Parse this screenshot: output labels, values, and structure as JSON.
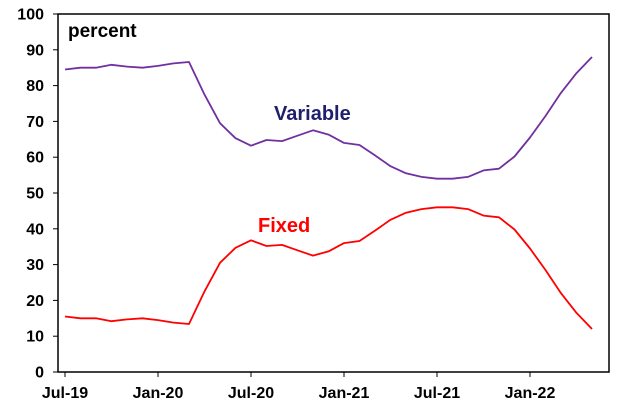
{
  "chart_data": {
    "type": "line",
    "unit_label": "percent",
    "ylim": [
      0,
      100
    ],
    "yticks": [
      0,
      10,
      20,
      30,
      40,
      50,
      60,
      70,
      80,
      90,
      100
    ],
    "x_tick_labels": [
      "Jul-19",
      "Jan-20",
      "Jul-20",
      "Jan-21",
      "Jul-21",
      "Jan-22"
    ],
    "x": [
      "Jul-19",
      "Aug-19",
      "Sep-19",
      "Oct-19",
      "Nov-19",
      "Dec-19",
      "Jan-20",
      "Feb-20",
      "Mar-20",
      "Apr-20",
      "May-20",
      "Jun-20",
      "Jul-20",
      "Aug-20",
      "Sep-20",
      "Oct-20",
      "Nov-20",
      "Dec-20",
      "Jan-21",
      "Feb-21",
      "Mar-21",
      "Apr-21",
      "May-21",
      "Jun-21",
      "Jul-21",
      "Aug-21",
      "Sep-21",
      "Oct-21",
      "Nov-21",
      "Dec-21",
      "Jan-22",
      "Feb-22",
      "Mar-22",
      "Apr-22",
      "May-22"
    ],
    "grid": false,
    "series": [
      {
        "name": "Variable",
        "color": "#7030A0",
        "label_color": "#1F1F6E",
        "values": [
          84.5,
          85,
          85,
          85.8,
          85.3,
          85,
          85.5,
          86.2,
          86.6,
          77.5,
          69.5,
          65.3,
          63.2,
          64.8,
          64.5,
          66,
          67.5,
          66.3,
          64,
          63.4,
          60.5,
          57.5,
          55.5,
          54.5,
          54,
          54,
          54.5,
          56.3,
          56.8,
          60.2,
          65.5,
          71.5,
          78,
          83.5,
          88
        ]
      },
      {
        "name": "Fixed",
        "color": "#FF0000",
        "label_color": "#FF0000",
        "values": [
          15.5,
          15,
          15,
          14.2,
          14.7,
          15,
          14.5,
          13.8,
          13.4,
          22.5,
          30.5,
          34.7,
          36.8,
          35.2,
          35.5,
          34,
          32.5,
          33.7,
          36,
          36.6,
          39.5,
          42.5,
          44.5,
          45.5,
          46,
          46,
          45.5,
          43.7,
          43.2,
          39.8,
          34.5,
          28.5,
          22,
          16.5,
          12
        ]
      }
    ]
  }
}
